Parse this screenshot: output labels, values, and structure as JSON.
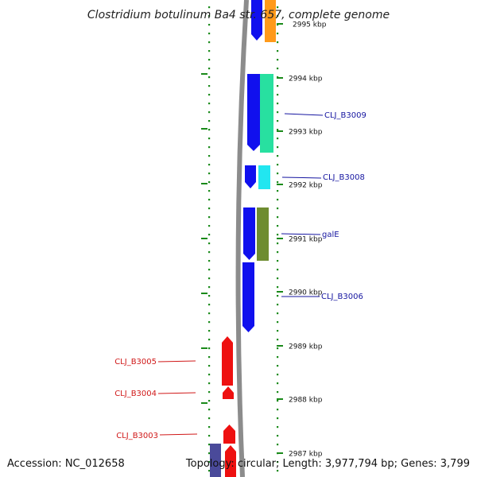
{
  "title": "Clostridium botulinum Ba4 str. 657, complete genome",
  "footer": {
    "accession": "Accession: NC_012658",
    "info": "Topology: circular; Length: 3,977,794 bp; Genes: 3,799"
  },
  "colors": {
    "backbone": "#8c8c8c",
    "dots": "#1a8a1a",
    "label_blue": "#1515a0",
    "label_red": "#d01818"
  },
  "scale_ticks": [
    {
      "label": "2995 kbp"
    },
    {
      "label": "2994 kbp"
    },
    {
      "label": "2993 kbp"
    },
    {
      "label": "2992 kbp"
    },
    {
      "label": "2991 kbp"
    },
    {
      "label": "2990 kbp"
    },
    {
      "label": "2989 kbp"
    },
    {
      "label": "2988 kbp"
    },
    {
      "label": "2987 kbp"
    }
  ],
  "gene_labels": [
    {
      "name": "CLJ_B3009",
      "color": "#1515a0"
    },
    {
      "name": "CLJ_B3008",
      "color": "#1515a0"
    },
    {
      "name": "galE",
      "color": "#1515a0"
    },
    {
      "name": "CLJ_B3006",
      "color": "#1515a0"
    },
    {
      "name": "CLJ_B3005",
      "color": "#d01818"
    },
    {
      "name": "CLJ_B3004",
      "color": "#d01818"
    },
    {
      "name": "CLJ_B3003",
      "color": "#d01818"
    }
  ],
  "features": [
    {
      "color": "#1010ee",
      "track": "forward"
    },
    {
      "color": "#ff9a1a",
      "track": "forward"
    },
    {
      "color": "#1010ee",
      "track": "forward"
    },
    {
      "color": "#28e0a0",
      "track": "forward"
    },
    {
      "color": "#1010ee",
      "track": "forward"
    },
    {
      "color": "#22e6f0",
      "track": "forward"
    },
    {
      "color": "#1010ee",
      "track": "forward"
    },
    {
      "color": "#6e8c30",
      "track": "forward"
    },
    {
      "color": "#1010ee",
      "track": "forward"
    },
    {
      "color": "#ee1010",
      "track": "reverse"
    },
    {
      "color": "#ee1010",
      "track": "reverse"
    },
    {
      "color": "#ee1010",
      "track": "reverse"
    },
    {
      "color": "#ee1010",
      "track": "reverse"
    },
    {
      "color": "#4a4a9a",
      "track": "reverse"
    }
  ]
}
